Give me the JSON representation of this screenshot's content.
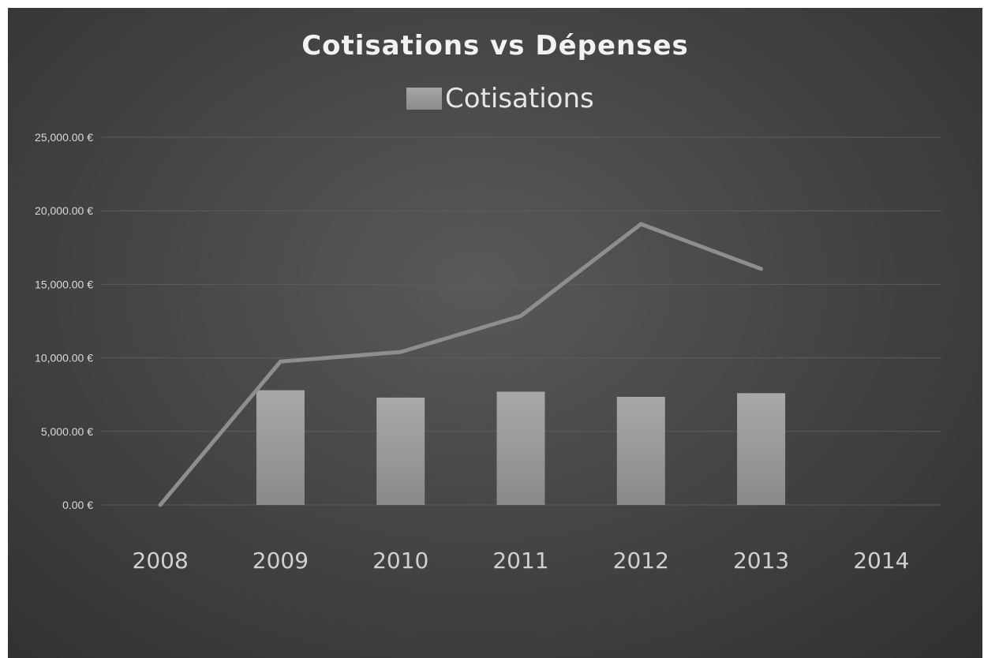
{
  "chart_data": {
    "type": "bar",
    "title": "Cotisations vs Dépenses",
    "categories": [
      "2008",
      "2009",
      "2010",
      "2011",
      "2012",
      "2013",
      "2014"
    ],
    "series": [
      {
        "name": "Cotisations",
        "kind": "bar",
        "legend": true,
        "values": [
          0,
          7800,
          7300,
          7700,
          7350,
          7600,
          null
        ]
      },
      {
        "kind": "line",
        "legend": false,
        "values": [
          0,
          9750,
          10400,
          12850,
          19100,
          16050,
          null
        ]
      }
    ],
    "ylim": [
      0,
      25000
    ],
    "yticks": [
      0,
      5000,
      10000,
      15000,
      20000,
      25000
    ],
    "ytick_labels": [
      "0.00 €",
      "5,000.00 €",
      "10,000.00 €",
      "15,000.00 €",
      "20,000.00 €",
      "25,000.00 €"
    ],
    "xlabel": "",
    "ylabel": "",
    "grid": true,
    "legend_position": "top"
  },
  "colors": {
    "bar": "#9a9a9a",
    "line": "#8e8e8e",
    "grid": "#5c5c5c",
    "text": "#d9d9d9"
  }
}
